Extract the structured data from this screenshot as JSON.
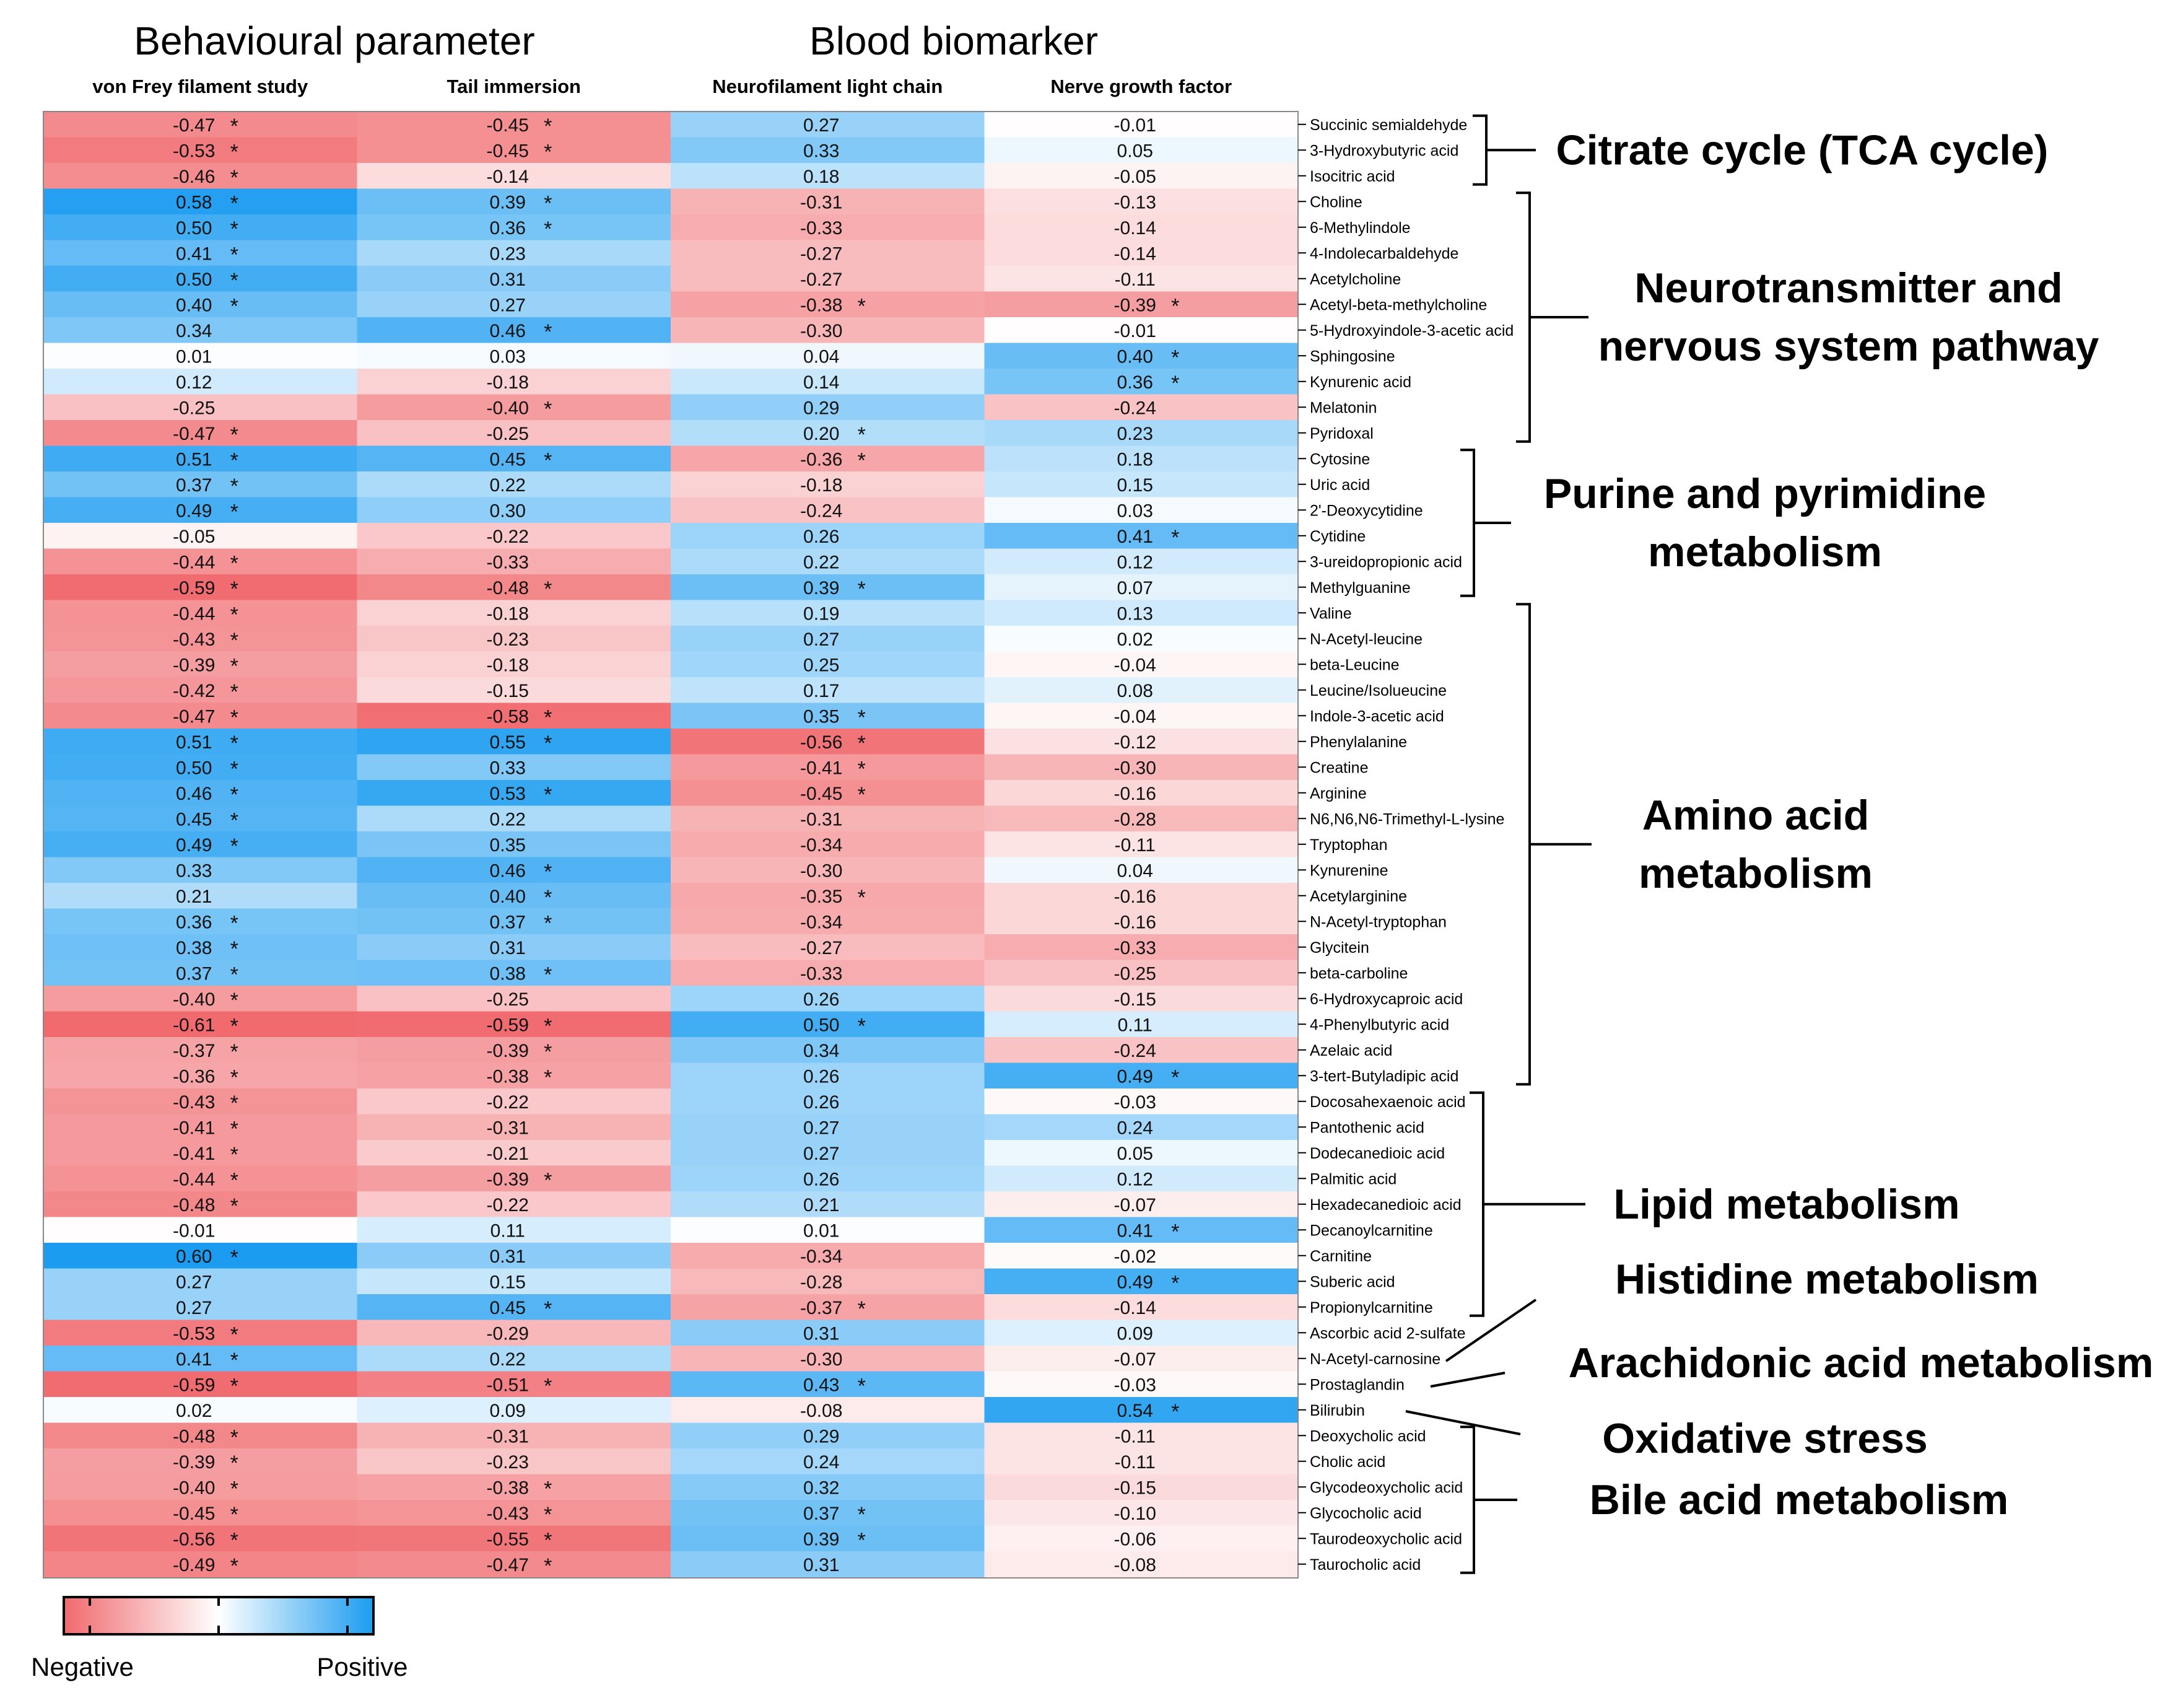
{
  "chart_data": {
    "type": "heatmap",
    "group_headers": [
      "Behavioural parameter",
      "Blood biomarker"
    ],
    "columns": [
      "von Frey filament study",
      "Tail immersion",
      "Neurofilament light chain",
      "Nerve growth factor"
    ],
    "rows": [
      {
        "name": "Succinic semialdehyde",
        "values": [
          -0.47,
          -0.45,
          0.27,
          -0.01
        ],
        "sig": [
          true,
          true,
          false,
          false
        ]
      },
      {
        "name": "3-Hydroxybutyric acid",
        "values": [
          -0.53,
          -0.45,
          0.33,
          0.05
        ],
        "sig": [
          true,
          true,
          false,
          false
        ]
      },
      {
        "name": "Isocitric acid",
        "values": [
          -0.46,
          -0.14,
          0.18,
          -0.05
        ],
        "sig": [
          true,
          false,
          false,
          false
        ]
      },
      {
        "name": "Choline",
        "values": [
          0.58,
          0.39,
          -0.31,
          -0.13
        ],
        "sig": [
          true,
          true,
          false,
          false
        ]
      },
      {
        "name": "6-Methylindole",
        "values": [
          0.5,
          0.36,
          -0.33,
          -0.14
        ],
        "sig": [
          true,
          true,
          false,
          false
        ]
      },
      {
        "name": "4-Indolecarbaldehyde",
        "values": [
          0.41,
          0.23,
          -0.27,
          -0.14
        ],
        "sig": [
          true,
          false,
          false,
          false
        ]
      },
      {
        "name": "Acetylcholine",
        "values": [
          0.5,
          0.31,
          -0.27,
          -0.11
        ],
        "sig": [
          true,
          false,
          false,
          false
        ]
      },
      {
        "name": "Acetyl-beta-methylcholine",
        "values": [
          0.4,
          0.27,
          -0.38,
          -0.39
        ],
        "sig": [
          true,
          false,
          true,
          true
        ]
      },
      {
        "name": "5-Hydroxyindole-3-acetic acid",
        "values": [
          0.34,
          0.46,
          -0.3,
          -0.01
        ],
        "sig": [
          false,
          true,
          false,
          false
        ]
      },
      {
        "name": "Sphingosine",
        "values": [
          0.01,
          0.03,
          0.04,
          0.4
        ],
        "sig": [
          false,
          false,
          false,
          true
        ]
      },
      {
        "name": "Kynurenic acid",
        "values": [
          0.12,
          -0.18,
          0.14,
          0.36
        ],
        "sig": [
          false,
          false,
          false,
          true
        ]
      },
      {
        "name": "Melatonin",
        "values": [
          -0.25,
          -0.4,
          0.29,
          -0.24
        ],
        "sig": [
          false,
          true,
          false,
          false
        ]
      },
      {
        "name": "Pyridoxal",
        "values": [
          -0.47,
          -0.25,
          0.2,
          0.23
        ],
        "sig": [
          true,
          false,
          true,
          false
        ]
      },
      {
        "name": "Cytosine",
        "values": [
          0.51,
          0.45,
          -0.36,
          0.18
        ],
        "sig": [
          true,
          true,
          true,
          false
        ]
      },
      {
        "name": "Uric acid",
        "values": [
          0.37,
          0.22,
          -0.18,
          0.15
        ],
        "sig": [
          true,
          false,
          false,
          false
        ]
      },
      {
        "name": "2'-Deoxycytidine",
        "values": [
          0.49,
          0.3,
          -0.24,
          0.03
        ],
        "sig": [
          true,
          false,
          false,
          false
        ]
      },
      {
        "name": "Cytidine",
        "values": [
          -0.05,
          -0.22,
          0.26,
          0.41
        ],
        "sig": [
          false,
          false,
          false,
          true
        ]
      },
      {
        "name": "3-ureidopropionic acid",
        "values": [
          -0.44,
          -0.33,
          0.22,
          0.12
        ],
        "sig": [
          true,
          false,
          false,
          false
        ]
      },
      {
        "name": "Methylguanine",
        "values": [
          -0.59,
          -0.48,
          0.39,
          0.07
        ],
        "sig": [
          true,
          true,
          true,
          false
        ]
      },
      {
        "name": "Valine",
        "values": [
          -0.44,
          -0.18,
          0.19,
          0.13
        ],
        "sig": [
          true,
          false,
          false,
          false
        ]
      },
      {
        "name": "N-Acetyl-leucine",
        "values": [
          -0.43,
          -0.23,
          0.27,
          0.02
        ],
        "sig": [
          true,
          false,
          false,
          false
        ]
      },
      {
        "name": "beta-Leucine",
        "values": [
          -0.39,
          -0.18,
          0.25,
          -0.04
        ],
        "sig": [
          true,
          false,
          false,
          false
        ]
      },
      {
        "name": "Leucine/Isolueucine",
        "values": [
          -0.42,
          -0.15,
          0.17,
          0.08
        ],
        "sig": [
          true,
          false,
          false,
          false
        ]
      },
      {
        "name": "Indole-3-acetic acid",
        "values": [
          -0.47,
          -0.58,
          0.35,
          -0.04
        ],
        "sig": [
          true,
          true,
          true,
          false
        ]
      },
      {
        "name": "Phenylalanine",
        "values": [
          0.51,
          0.55,
          -0.56,
          -0.12
        ],
        "sig": [
          true,
          true,
          true,
          false
        ]
      },
      {
        "name": "Creatine",
        "values": [
          0.5,
          0.33,
          -0.41,
          -0.3
        ],
        "sig": [
          true,
          false,
          true,
          false
        ]
      },
      {
        "name": "Arginine",
        "values": [
          0.46,
          0.53,
          -0.45,
          -0.16
        ],
        "sig": [
          true,
          true,
          true,
          false
        ]
      },
      {
        "name": "N6,N6,N6-Trimethyl-L-lysine",
        "values": [
          0.45,
          0.22,
          -0.31,
          -0.28
        ],
        "sig": [
          true,
          false,
          false,
          false
        ]
      },
      {
        "name": "Tryptophan",
        "values": [
          0.49,
          0.35,
          -0.34,
          -0.11
        ],
        "sig": [
          true,
          false,
          false,
          false
        ]
      },
      {
        "name": "Kynurenine",
        "values": [
          0.33,
          0.46,
          -0.3,
          0.04
        ],
        "sig": [
          false,
          true,
          false,
          false
        ]
      },
      {
        "name": "Acetylarginine",
        "values": [
          0.21,
          0.4,
          -0.35,
          -0.16
        ],
        "sig": [
          false,
          true,
          true,
          false
        ]
      },
      {
        "name": "N-Acetyl-tryptophan",
        "values": [
          0.36,
          0.37,
          -0.34,
          -0.16
        ],
        "sig": [
          true,
          true,
          false,
          false
        ]
      },
      {
        "name": "Glycitein",
        "values": [
          0.38,
          0.31,
          -0.27,
          -0.33
        ],
        "sig": [
          true,
          false,
          false,
          false
        ]
      },
      {
        "name": "beta-carboline",
        "values": [
          0.37,
          0.38,
          -0.33,
          -0.25
        ],
        "sig": [
          true,
          true,
          false,
          false
        ]
      },
      {
        "name": "6-Hydroxycaproic acid",
        "values": [
          -0.4,
          -0.25,
          0.26,
          -0.15
        ],
        "sig": [
          true,
          false,
          false,
          false
        ]
      },
      {
        "name": "4-Phenylbutyric acid",
        "values": [
          -0.61,
          -0.59,
          0.5,
          0.11
        ],
        "sig": [
          true,
          true,
          true,
          false
        ]
      },
      {
        "name": "Azelaic acid",
        "values": [
          -0.37,
          -0.39,
          0.34,
          -0.24
        ],
        "sig": [
          true,
          true,
          false,
          false
        ]
      },
      {
        "name": "3-tert-Butyladipic acid",
        "values": [
          -0.36,
          -0.38,
          0.26,
          0.49
        ],
        "sig": [
          true,
          true,
          false,
          true
        ]
      },
      {
        "name": "Docosahexaenoic acid",
        "values": [
          -0.43,
          -0.22,
          0.26,
          -0.03
        ],
        "sig": [
          true,
          false,
          false,
          false
        ]
      },
      {
        "name": "Pantothenic acid",
        "values": [
          -0.41,
          -0.31,
          0.27,
          0.24
        ],
        "sig": [
          true,
          false,
          false,
          false
        ]
      },
      {
        "name": "Dodecanedioic acid",
        "values": [
          -0.41,
          -0.21,
          0.27,
          0.05
        ],
        "sig": [
          true,
          false,
          false,
          false
        ]
      },
      {
        "name": "Palmitic acid",
        "values": [
          -0.44,
          -0.39,
          0.26,
          0.12
        ],
        "sig": [
          true,
          true,
          false,
          false
        ]
      },
      {
        "name": "Hexadecanedioic acid",
        "values": [
          -0.48,
          -0.22,
          0.21,
          -0.07
        ],
        "sig": [
          true,
          false,
          false,
          false
        ]
      },
      {
        "name": "Decanoylcarnitine",
        "values": [
          -0.01,
          0.11,
          0.01,
          0.41
        ],
        "sig": [
          false,
          false,
          false,
          true
        ]
      },
      {
        "name": "Carnitine",
        "values": [
          0.6,
          0.31,
          -0.34,
          -0.02
        ],
        "sig": [
          true,
          false,
          false,
          false
        ]
      },
      {
        "name": "Suberic acid",
        "values": [
          0.27,
          0.15,
          -0.28,
          0.49
        ],
        "sig": [
          false,
          false,
          false,
          true
        ]
      },
      {
        "name": "Propionylcarnitine",
        "values": [
          0.27,
          0.45,
          -0.37,
          -0.14
        ],
        "sig": [
          false,
          true,
          true,
          false
        ]
      },
      {
        "name": "Ascorbic acid 2-sulfate",
        "values": [
          -0.53,
          -0.29,
          0.31,
          0.09
        ],
        "sig": [
          true,
          false,
          false,
          false
        ]
      },
      {
        "name": "N-Acetyl-carnosine",
        "values": [
          0.41,
          0.22,
          -0.3,
          -0.07
        ],
        "sig": [
          true,
          false,
          false,
          false
        ]
      },
      {
        "name": "Prostaglandin",
        "values": [
          -0.59,
          -0.51,
          0.43,
          -0.03
        ],
        "sig": [
          true,
          true,
          true,
          false
        ]
      },
      {
        "name": "Bilirubin",
        "values": [
          0.02,
          0.09,
          -0.08,
          0.54
        ],
        "sig": [
          false,
          false,
          false,
          true
        ]
      },
      {
        "name": "Deoxycholic acid",
        "values": [
          -0.48,
          -0.31,
          0.29,
          -0.11
        ],
        "sig": [
          true,
          false,
          false,
          false
        ]
      },
      {
        "name": "Cholic acid",
        "values": [
          -0.39,
          -0.23,
          0.24,
          -0.11
        ],
        "sig": [
          true,
          false,
          false,
          false
        ]
      },
      {
        "name": "Glycodeoxycholic acid",
        "values": [
          -0.4,
          -0.38,
          0.32,
          -0.15
        ],
        "sig": [
          true,
          true,
          false,
          false
        ]
      },
      {
        "name": "Glycocholic acid",
        "values": [
          -0.45,
          -0.43,
          0.37,
          -0.1
        ],
        "sig": [
          true,
          true,
          true,
          false
        ]
      },
      {
        "name": "Taurodeoxycholic acid",
        "values": [
          -0.56,
          -0.55,
          0.39,
          -0.06
        ],
        "sig": [
          true,
          true,
          true,
          false
        ]
      },
      {
        "name": "Taurocholic acid",
        "values": [
          -0.49,
          -0.47,
          0.31,
          -0.08
        ],
        "sig": [
          true,
          true,
          false,
          false
        ]
      }
    ],
    "significance_marker": "*",
    "pathway_groups": [
      {
        "lines": [
          "Citrate cycle (TCA cycle)"
        ],
        "start": 0,
        "end": 2,
        "style": "bracket"
      },
      {
        "lines": [
          "Neurotransmitter and",
          "nervous system pathway"
        ],
        "start": 3,
        "end": 12,
        "style": "bracket"
      },
      {
        "lines": [
          "Purine and pyrimidine",
          "metabolism"
        ],
        "start": 13,
        "end": 18,
        "style": "bracket"
      },
      {
        "lines": [
          "Amino acid",
          "metabolism"
        ],
        "start": 19,
        "end": 37,
        "style": "bracket"
      },
      {
        "lines": [
          "Lipid metabolism"
        ],
        "start": 38,
        "end": 46,
        "style": "bracket"
      },
      {
        "lines": [
          "Histidine metabolism"
        ],
        "start": 48,
        "end": 48,
        "style": "pointer"
      },
      {
        "lines": [
          "Arachidonic acid metabolism"
        ],
        "start": 49,
        "end": 49,
        "style": "pointer"
      },
      {
        "lines": [
          "Oxidative stress"
        ],
        "start": 50,
        "end": 50,
        "style": "pointer"
      },
      {
        "lines": [
          "Bile acid metabolism"
        ],
        "start": 51,
        "end": 56,
        "style": "bracket"
      }
    ],
    "legend": {
      "negative_label": "Negative",
      "positive_label": "Positive"
    },
    "color_scale": {
      "min": -0.6,
      "max": 0.6,
      "negative_color": "#f06a6e",
      "mid_color": "#ffffff",
      "positive_color": "#1c9cf0"
    }
  }
}
